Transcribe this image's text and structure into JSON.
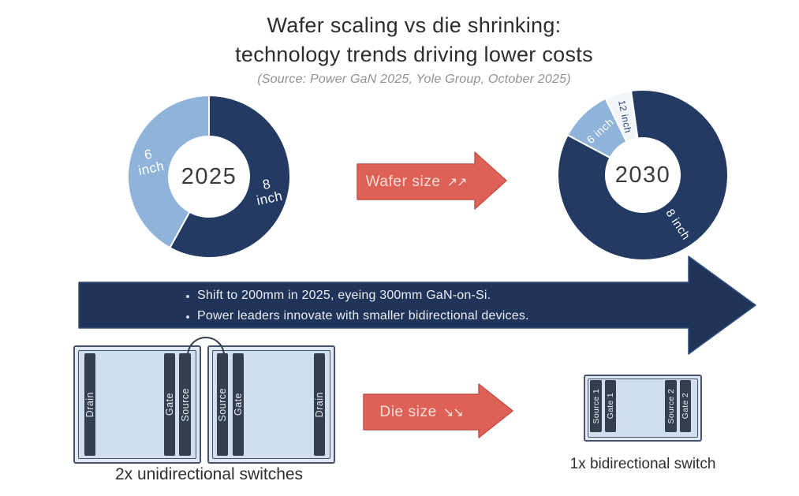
{
  "title": {
    "line1": "Wafer scaling vs die shrinking:",
    "line2": "technology trends driving lower costs"
  },
  "source_note": "(Source: Power GaN 2025, Yole Group, October 2025)",
  "palette": {
    "navy": "#233a63",
    "light_blue": "#8fb3d9",
    "pale_wedge": "#f2f6fb",
    "red_arrow": "#dd6157",
    "banner_navy": "#20345a",
    "switch_fill": "#cfdfef",
    "switch_frame": "#dfe9f4",
    "bar_dark": "#333e4e"
  },
  "chart_data": [
    {
      "type": "pie",
      "variant": "donut",
      "title": "2025 wafer size mix",
      "center_label": "2025",
      "labels": [
        "8 inch",
        "6 inch"
      ],
      "values": [
        58,
        42
      ],
      "colors": [
        "#233a63",
        "#8fb3d9"
      ],
      "legend_position": "on-slice"
    },
    {
      "type": "pie",
      "variant": "donut",
      "title": "2030 wafer size mix",
      "center_label": "2030",
      "labels": [
        "8 inch",
        "6 inch",
        "12 inch"
      ],
      "values": [
        85,
        10,
        5
      ],
      "colors": [
        "#233a63",
        "#8fb3d9",
        "#f2f6fb"
      ],
      "legend_position": "on-slice"
    }
  ],
  "donuts": {
    "d2025": {
      "center_label": "2025",
      "start_angle": 0,
      "segments": [
        {
          "label": "8\ninch",
          "value": 58,
          "color": "#233a63",
          "text_color": "#ffffff",
          "label_rotate": -12,
          "label_size": 17
        },
        {
          "label": "6\ninch",
          "value": 42,
          "color": "#8fb3d9",
          "text_color": "#ffffff",
          "label_rotate": -12,
          "label_size": 17
        }
      ]
    },
    "d2030": {
      "center_label": "2030",
      "start_angle": -8,
      "segments": [
        {
          "label": "8 inch",
          "value": 85,
          "color": "#233a63",
          "text_color": "#ffffff",
          "label_rotate": 57,
          "label_size": 15
        },
        {
          "label": "6 inch",
          "value": 10,
          "color": "#8fb3d9",
          "text_color": "#ffffff",
          "label_rotate": -42,
          "label_size": 14
        },
        {
          "label": "12 inch",
          "value": 5,
          "color": "#f2f6fb",
          "text_color": "#27406b",
          "label_rotate": 78,
          "label_size": 12
        }
      ]
    }
  },
  "wafer_arrow": {
    "label": "Wafer size",
    "arrows": "↗↗"
  },
  "die_arrow": {
    "label": "Die size",
    "arrows": "↘↘"
  },
  "banner": {
    "bullets": [
      "Shift to 200mm in 2025, eyeing 300mm GaN-on-Si.",
      "Power leaders innovate with smaller bidirectional devices."
    ]
  },
  "switches": {
    "uni_caption": "2x unidirectional switches",
    "bi_caption": "1x bidirectional switch",
    "uni_left": {
      "bars": [
        "Drain",
        "Gate",
        "Source"
      ]
    },
    "uni_right": {
      "bars": [
        "Source",
        "Gate",
        "Drain"
      ]
    },
    "bi": {
      "bars_left": [
        "Source 1",
        "Gate 1"
      ],
      "bars_right": [
        "Source 2",
        "Gate 2"
      ]
    }
  }
}
